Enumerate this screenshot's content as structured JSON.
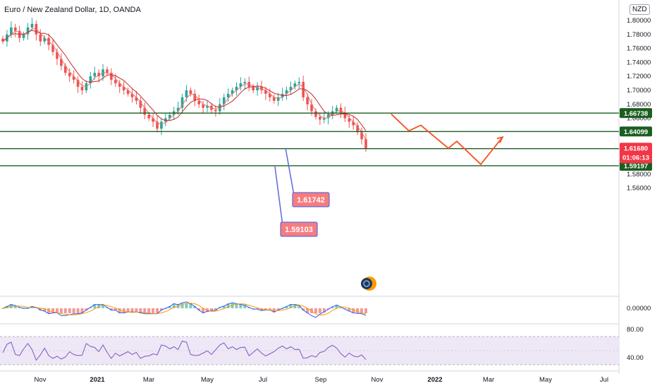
{
  "header": {
    "title": "Euro / New Zealand Dollar, 1D, OANDA",
    "currency": "NZD"
  },
  "chart_data": {
    "type": "candlestick",
    "price_axis": {
      "ticks": [
        {
          "v": 1.8,
          "label": "1.80000"
        },
        {
          "v": 1.78,
          "label": "1.78000"
        },
        {
          "v": 1.76,
          "label": "1.76000"
        },
        {
          "v": 1.74,
          "label": "1.74000"
        },
        {
          "v": 1.72,
          "label": "1.72000"
        },
        {
          "v": 1.7,
          "label": "1.70000"
        },
        {
          "v": 1.68,
          "label": "1.68000"
        },
        {
          "v": 1.66,
          "label": "1.66000"
        },
        {
          "v": 1.58,
          "label": "1.58000"
        },
        {
          "v": 1.56,
          "label": "1.56000"
        }
      ]
    },
    "time_axis": [
      {
        "label": "Nov",
        "bold": false
      },
      {
        "label": "2021",
        "bold": true
      },
      {
        "label": "Mar",
        "bold": false
      },
      {
        "label": "May",
        "bold": false
      },
      {
        "label": "Jul",
        "bold": false
      },
      {
        "label": "Sep",
        "bold": false
      },
      {
        "label": "Nov",
        "bold": false
      },
      {
        "label": "2022",
        "bold": true
      },
      {
        "label": "Mar",
        "bold": false
      },
      {
        "label": "May",
        "bold": false
      },
      {
        "label": "Jul",
        "bold": false
      }
    ],
    "levels": [
      {
        "value": 1.66738,
        "label": "1.66738"
      },
      {
        "value": 1.64099,
        "label": "1.64099"
      },
      {
        "value": 1.61648,
        "label": "1.61648"
      },
      {
        "value": 1.59197,
        "label": "1.59197"
      }
    ],
    "current_price": {
      "value": 1.6168,
      "label": "1.61680",
      "countdown": "01:06:13"
    },
    "callouts": [
      {
        "label": "1.61742",
        "value": 1.61742
      },
      {
        "label": "1.59103",
        "value": 1.59103
      }
    ],
    "projection": [
      1.666,
      1.642,
      1.65,
      1.617,
      1.627,
      1.594,
      1.633
    ],
    "candle_closes": [
      1.77,
      1.78,
      1.79,
      1.785,
      1.775,
      1.78,
      1.79,
      1.795,
      1.78,
      1.77,
      1.775,
      1.765,
      1.755,
      1.745,
      1.735,
      1.725,
      1.72,
      1.715,
      1.705,
      1.7,
      1.71,
      1.72,
      1.725,
      1.72,
      1.73,
      1.725,
      1.715,
      1.71,
      1.705,
      1.7,
      1.695,
      1.69,
      1.685,
      1.675,
      1.665,
      1.66,
      1.655,
      1.645,
      1.655,
      1.66,
      1.665,
      1.67,
      1.675,
      1.69,
      1.7,
      1.695,
      1.685,
      1.68,
      1.675,
      1.678,
      1.672,
      1.67,
      1.68,
      1.69,
      1.695,
      1.7,
      1.705,
      1.71,
      1.712,
      1.705,
      1.7,
      1.705,
      1.7,
      1.695,
      1.69,
      1.685,
      1.69,
      1.695,
      1.7,
      1.705,
      1.71,
      1.712,
      1.69,
      1.68,
      1.67,
      1.662,
      1.658,
      1.66,
      1.665,
      1.67,
      1.675,
      1.668,
      1.66,
      1.655,
      1.65,
      1.64,
      1.63,
      1.617
    ],
    "macd_axis": {
      "label": "0.00000"
    },
    "rsi_axis": {
      "ticks": [
        {
          "v": 80,
          "label": "80.00"
        },
        {
          "v": 40,
          "label": "40.00"
        }
      ]
    },
    "colors": {
      "up": "#26a69a",
      "down": "#ef5350",
      "level": "#1b5e20",
      "current": "#f23645",
      "projection": "#f4511e",
      "callout": "#f77c80",
      "callout_border": "#5b6bd6",
      "rsi_band": "#ede7f6",
      "rsi_line": "#7e57c2",
      "macd_line": "#2962ff",
      "signal_line": "#ff9800"
    }
  }
}
